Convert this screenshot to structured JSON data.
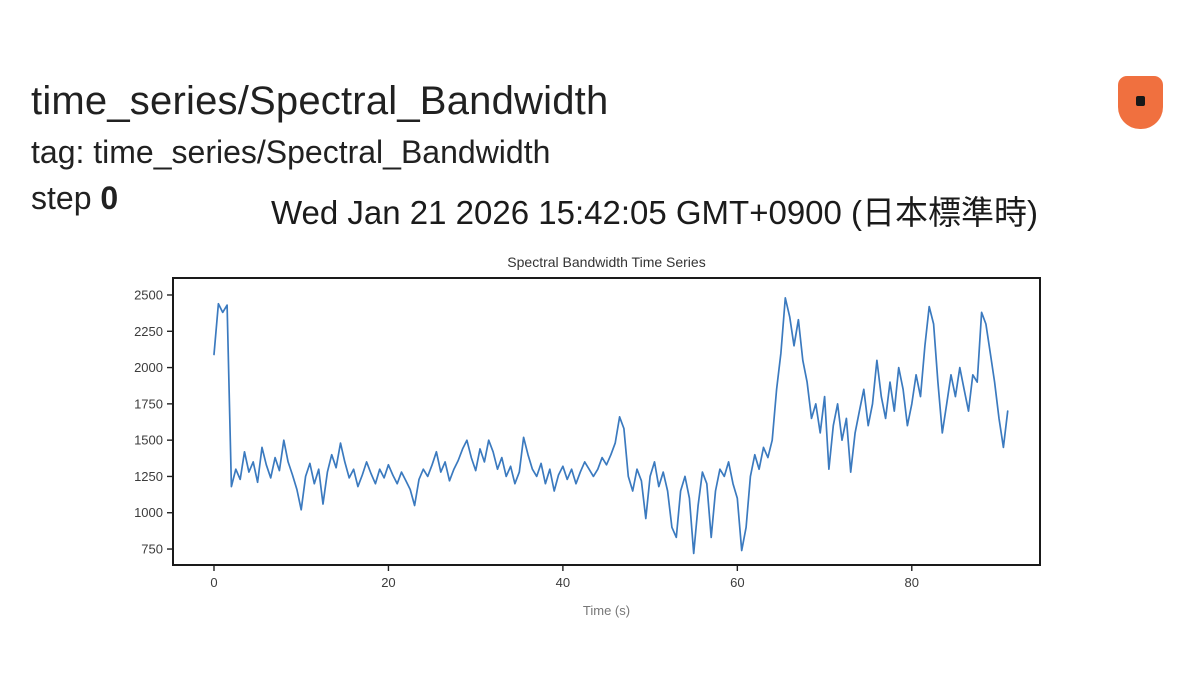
{
  "header": {
    "title": "time_series/Spectral_Bandwidth",
    "tag_line": "tag: time_series/Spectral_Bandwidth",
    "step_label": "step",
    "step_value": "0",
    "timestamp": "Wed Jan 21 2026 15:42:05 GMT+0900 (日本標準時)"
  },
  "icons": {
    "pin_color": "#f0703f"
  },
  "chart_data": {
    "type": "line",
    "title": "Spectral Bandwidth Time Series",
    "xlabel": "Time (s)",
    "ylabel": "",
    "line_color": "#3b7abf",
    "grid": false,
    "legend": null,
    "x_ticks": [
      0,
      20,
      40,
      60,
      80
    ],
    "y_ticks": [
      750,
      1000,
      1250,
      1500,
      1750,
      2000,
      2250,
      2500
    ],
    "xlim": [
      -4.7,
      94.7
    ],
    "ylim": [
      640,
      2617
    ],
    "x_start": 0,
    "x_step": 0.5,
    "values": [
      2090,
      2440,
      2380,
      2430,
      1180,
      1300,
      1230,
      1420,
      1280,
      1350,
      1210,
      1450,
      1330,
      1240,
      1380,
      1290,
      1500,
      1350,
      1260,
      1160,
      1020,
      1250,
      1340,
      1200,
      1300,
      1060,
      1280,
      1400,
      1310,
      1480,
      1350,
      1240,
      1300,
      1180,
      1260,
      1350,
      1270,
      1200,
      1300,
      1240,
      1330,
      1260,
      1200,
      1280,
      1220,
      1160,
      1050,
      1230,
      1300,
      1250,
      1330,
      1420,
      1280,
      1350,
      1220,
      1300,
      1360,
      1440,
      1500,
      1380,
      1290,
      1440,
      1350,
      1500,
      1420,
      1300,
      1380,
      1250,
      1320,
      1200,
      1280,
      1520,
      1400,
      1300,
      1250,
      1340,
      1200,
      1300,
      1150,
      1260,
      1320,
      1230,
      1300,
      1200,
      1280,
      1350,
      1300,
      1250,
      1300,
      1380,
      1330,
      1400,
      1480,
      1660,
      1580,
      1250,
      1150,
      1300,
      1220,
      960,
      1250,
      1350,
      1180,
      1280,
      1150,
      900,
      830,
      1150,
      1250,
      1100,
      720,
      1050,
      1280,
      1200,
      830,
      1150,
      1300,
      1250,
      1350,
      1200,
      1100,
      740,
      900,
      1250,
      1400,
      1300,
      1450,
      1380,
      1500,
      1850,
      2100,
      2480,
      2350,
      2150,
      2330,
      2050,
      1900,
      1650,
      1750,
      1550,
      1800,
      1300,
      1600,
      1750,
      1500,
      1650,
      1280,
      1550,
      1700,
      1850,
      1600,
      1750,
      2050,
      1800,
      1650,
      1900,
      1700,
      2000,
      1850,
      1600,
      1750,
      1950,
      1800,
      2150,
      2420,
      2300,
      1900,
      1550,
      1750,
      1950,
      1800,
      2000,
      1850,
      1700,
      1950,
      1900,
      2380,
      2300,
      2100,
      1900,
      1650,
      1450,
      1700
    ]
  }
}
